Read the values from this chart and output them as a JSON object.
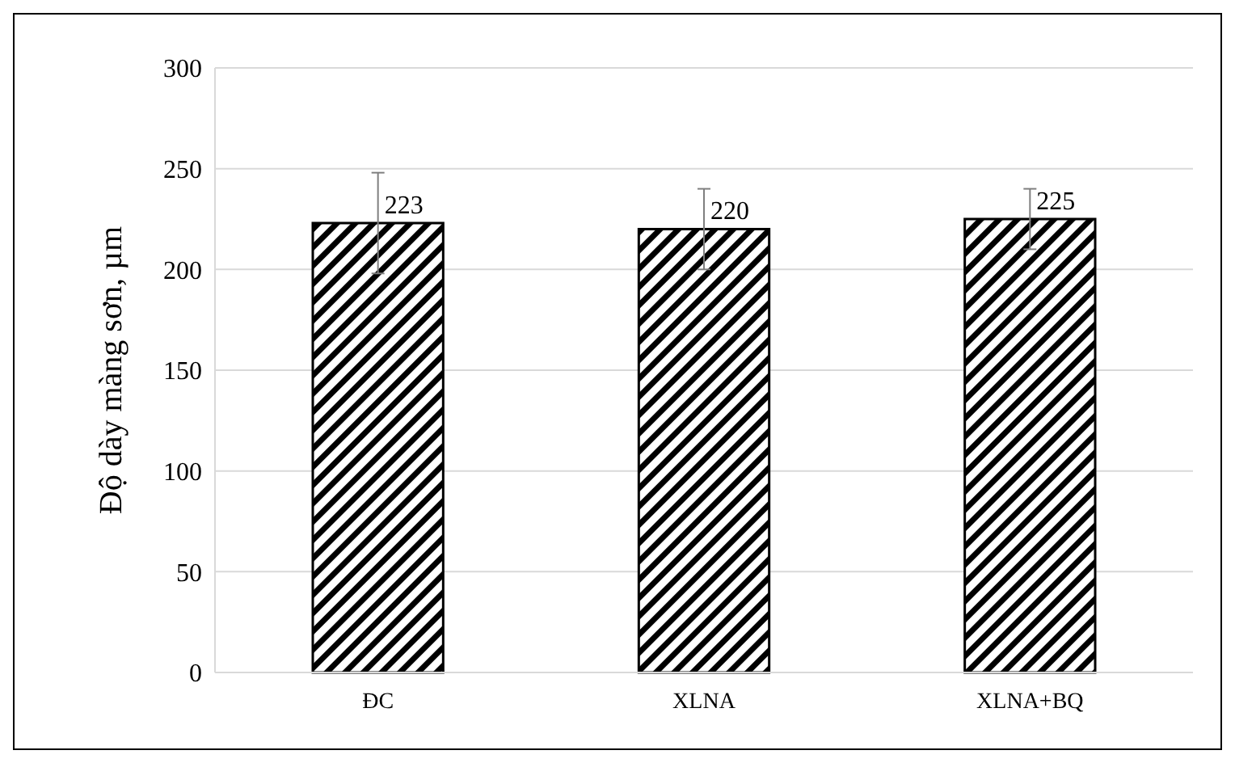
{
  "chart_data": {
    "type": "bar",
    "ylabel": "Độ dày màng sơn, µm",
    "categories": [
      "ĐC",
      "XLNA",
      "XLNA+BQ"
    ],
    "values": [
      223,
      220,
      225
    ],
    "errors": [
      25,
      20,
      15
    ],
    "color": "#000000",
    "data_labels": true,
    "ylim": [
      0,
      300
    ],
    "yticks": [
      0,
      50,
      100,
      150,
      200,
      250,
      300
    ],
    "grid": "y"
  }
}
